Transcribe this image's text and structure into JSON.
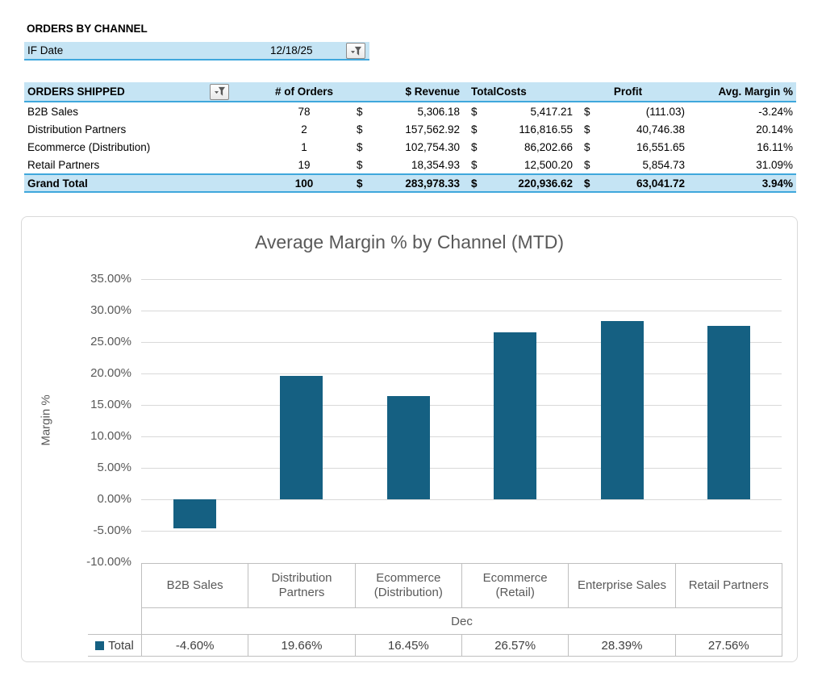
{
  "page_title": "ORDERS BY CHANNEL",
  "filter_bar": {
    "label": "IF Date",
    "value": "12/18/25",
    "filter_icon": "filter-funnel-dropdown-icon"
  },
  "orders_table": {
    "title": "ORDERS SHIPPED",
    "filter_icon": "filter-funnel-dropdown-icon",
    "currency_symbol": "$",
    "columns": [
      "# of Orders",
      "$ Revenue",
      "TotalCosts",
      "Profit",
      "Avg. Margin %"
    ],
    "rows": [
      {
        "channel": "B2B Sales",
        "orders": "78",
        "revenue": "5,306.18",
        "costs": "5,417.21",
        "profit": "(111.03)",
        "margin": "-3.24%"
      },
      {
        "channel": "Distribution Partners",
        "orders": "2",
        "revenue": "157,562.92",
        "costs": "116,816.55",
        "profit": "40,746.38",
        "margin": "20.14%"
      },
      {
        "channel": "Ecommerce (Distribution)",
        "orders": "1",
        "revenue": "102,754.30",
        "costs": "86,202.66",
        "profit": "16,551.65",
        "margin": "16.11%"
      },
      {
        "channel": "Retail Partners",
        "orders": "19",
        "revenue": "18,354.93",
        "costs": "12,500.20",
        "profit": "5,854.73",
        "margin": "31.09%"
      }
    ],
    "grand_total": {
      "channel": "Grand Total",
      "orders": "100",
      "revenue": "283,978.33",
      "costs": "220,936.62",
      "profit": "63,041.72",
      "margin": "3.94%"
    }
  },
  "chart_data": {
    "type": "bar",
    "title": "Average Margin % by Channel (MTD)",
    "ylabel": "Margin %",
    "xlabel": "",
    "categories": [
      "B2B Sales",
      "Distribution Partners",
      "Ecommerce (Distribution)",
      "Ecommerce (Retail)",
      "Enterprise Sales",
      "Retail Partners"
    ],
    "x_group_label": "Dec",
    "series": [
      {
        "name": "Total",
        "color": "#156082",
        "values": [
          -4.6,
          19.66,
          16.45,
          26.57,
          28.39,
          27.56
        ]
      }
    ],
    "value_labels": [
      "-4.60%",
      "19.66%",
      "16.45%",
      "26.57%",
      "28.39%",
      "27.56%"
    ],
    "ylim": [
      -10,
      35
    ],
    "ytick_step": 5,
    "ytick_labels": [
      "35.00%",
      "30.00%",
      "25.00%",
      "20.00%",
      "15.00%",
      "10.00%",
      "5.00%",
      "0.00%",
      "-5.00%",
      "-10.00%"
    ],
    "grid": true,
    "legend_position": "bottom-left",
    "legend_marker_icon": "legend-square-icon"
  },
  "colors": {
    "accent_border": "#3FA7DC",
    "header_fill": "#C5E4F4",
    "bar": "#156082",
    "gridline": "#D9D9D9",
    "chart_text": "#595959",
    "chart_table_border": "#BFBFBF"
  }
}
